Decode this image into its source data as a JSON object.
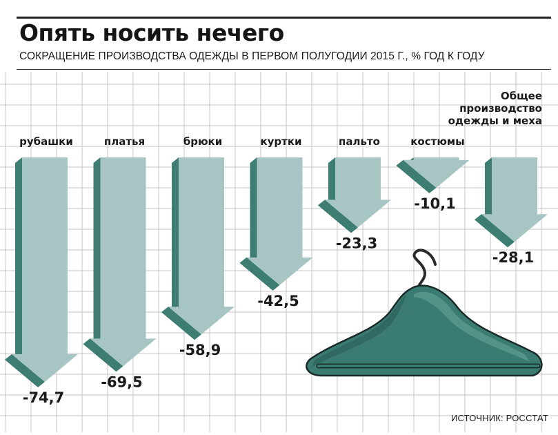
{
  "title": "Опять носить нечего",
  "subtitle": "СОКРАЩЕНИЕ ПРОИЗВОДСТВА ОДЕЖДЫ В ПЕРВОМ ПОЛУГОДИИ 2015 Г., % ГОД К ГОДУ",
  "source": "ИСТОЧНИК: РОССТАТ",
  "colors": {
    "arrow_face": "#a6c5c3",
    "arrow_side": "#3d7d72",
    "grid": "#c4c4c4",
    "hanger": "#3a7c72"
  },
  "icons": [
    "coat-hanger-icon"
  ],
  "chart_data": {
    "type": "bar",
    "orientation": "downward-arrows",
    "categories": [
      "рубашки",
      "платья",
      "брюки",
      "куртки",
      "пальто",
      "костюмы",
      "Общее производство одежды и меха"
    ],
    "category_lines": [
      [
        "рубашки"
      ],
      [
        "платья"
      ],
      [
        "брюки"
      ],
      [
        "куртки"
      ],
      [
        "пальто"
      ],
      [
        "костюмы"
      ],
      [
        "Общее",
        "производство",
        "одежды и меха"
      ]
    ],
    "values": [
      -74.7,
      -69.5,
      -58.9,
      -42.5,
      -23.3,
      -10.1,
      -28.1
    ],
    "value_labels": [
      "-74,7",
      "-69,5",
      "-58,9",
      "-42,5",
      "-23,3",
      "-10,1",
      "-28,1"
    ],
    "title": "Опять носить нечего",
    "xlabel": "",
    "ylabel": "",
    "ylim": [
      -80,
      0
    ],
    "grid": true,
    "legend": "none"
  }
}
